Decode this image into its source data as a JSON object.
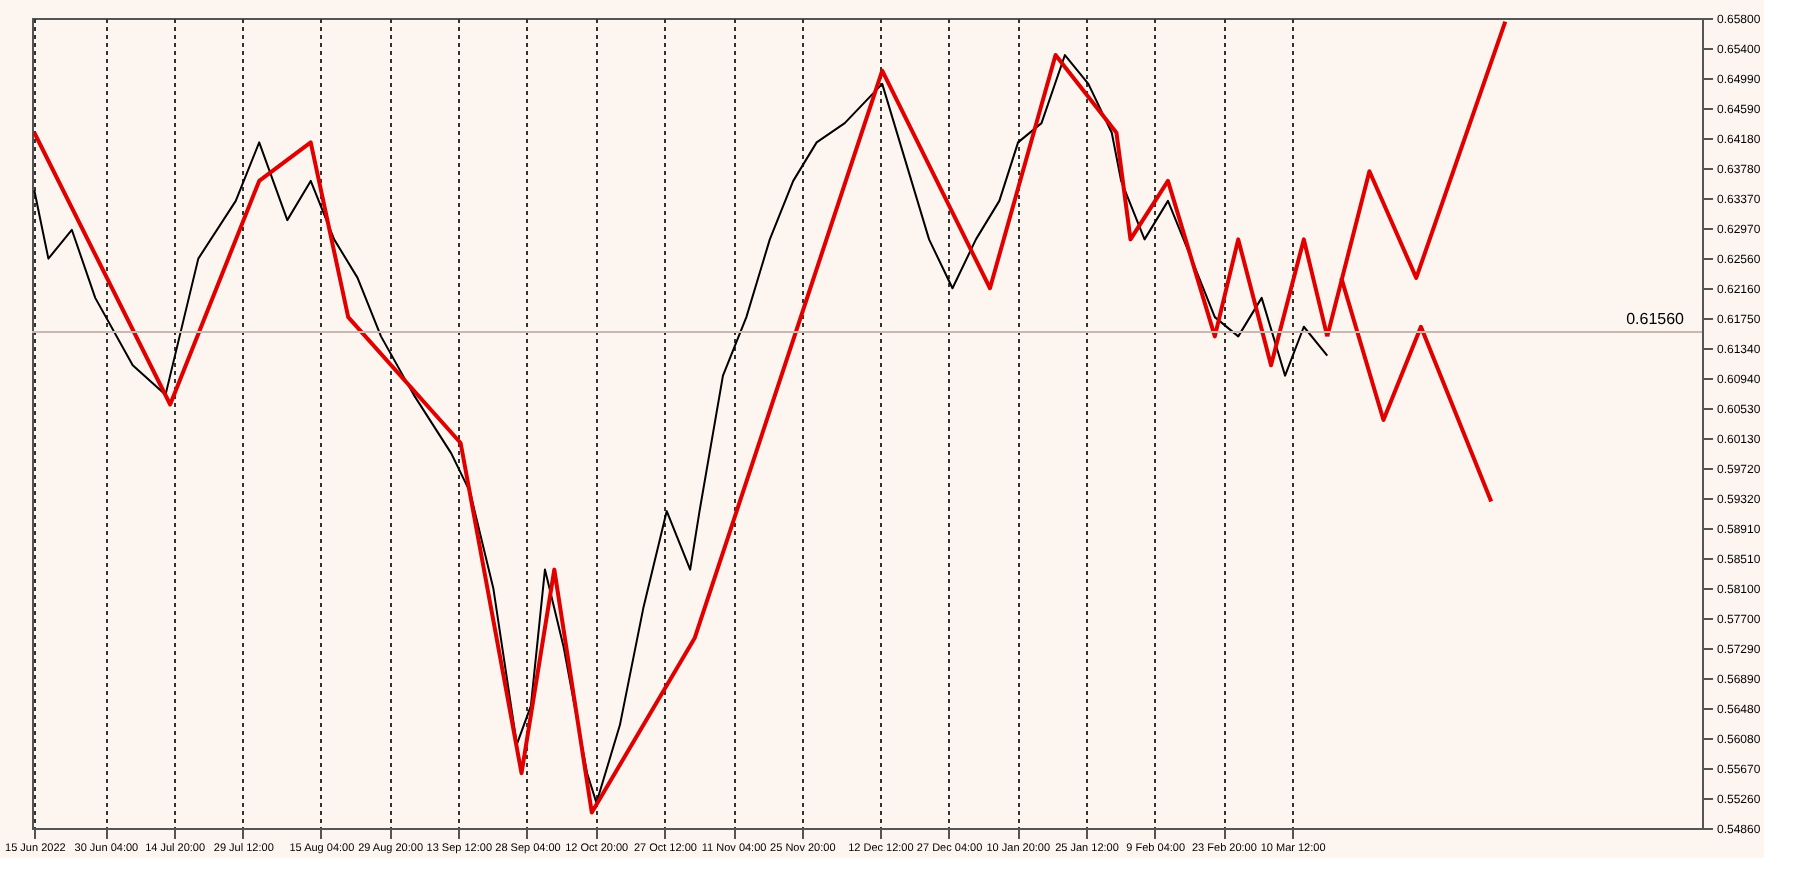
{
  "chart_data": {
    "type": "line",
    "xlim": [
      "2022-06-14T12:00",
      "2023-06-06"
    ],
    "xticks": [
      {
        "value": "2022-06-15",
        "label": "15 Jun 2022"
      },
      {
        "value": "2022-06-30T04:00",
        "label": "30 Jun 04:00"
      },
      {
        "value": "2022-07-14T20:00",
        "label": "14 Jul 20:00"
      },
      {
        "value": "2022-07-29T12:00",
        "label": "29 Jul 12:00"
      },
      {
        "value": "2022-08-15T04:00",
        "label": "15 Aug 04:00"
      },
      {
        "value": "2022-08-29T20:00",
        "label": "29 Aug 20:00"
      },
      {
        "value": "2022-09-13T12:00",
        "label": "13 Sep 12:00"
      },
      {
        "value": "2022-09-28T04:00",
        "label": "28 Sep 04:00"
      },
      {
        "value": "2022-10-12T20:00",
        "label": "12 Oct 20:00"
      },
      {
        "value": "2022-10-27T12:00",
        "label": "27 Oct 12:00"
      },
      {
        "value": "2022-11-11T04:00",
        "label": "11 Nov 04:00"
      },
      {
        "value": "2022-11-25T20:00",
        "label": "25 Nov 20:00"
      },
      {
        "value": "2022-12-12T12:00",
        "label": "12 Dec 12:00"
      },
      {
        "value": "2022-12-27T04:00",
        "label": "27 Dec 04:00"
      },
      {
        "value": "2023-01-10T20:00",
        "label": "10 Jan 20:00"
      },
      {
        "value": "2023-01-25T12:00",
        "label": "25 Jan 12:00"
      },
      {
        "value": "2023-02-09T04:00",
        "label": "9 Feb 04:00"
      },
      {
        "value": "2023-02-23T20:00",
        "label": "23 Feb 20:00"
      },
      {
        "value": "2023-03-10T12:00",
        "label": "10 Mar 12:00"
      }
    ],
    "ylim": [
      0.5486,
      0.658
    ],
    "yticks": [
      {
        "value": 0.658,
        "label": "0.65800"
      },
      {
        "value": 0.654,
        "label": "0.65400"
      },
      {
        "value": 0.6499,
        "label": "0.64990"
      },
      {
        "value": 0.6459,
        "label": "0.64590"
      },
      {
        "value": 0.6418,
        "label": "0.64180"
      },
      {
        "value": 0.6378,
        "label": "0.63780"
      },
      {
        "value": 0.6337,
        "label": "0.63370"
      },
      {
        "value": 0.6297,
        "label": "0.62970"
      },
      {
        "value": 0.6256,
        "label": "0.62560"
      },
      {
        "value": 0.6216,
        "label": "0.62160"
      },
      {
        "value": 0.6175,
        "label": "0.61750"
      },
      {
        "value": 0.6134,
        "label": "0.61340"
      },
      {
        "value": 0.6094,
        "label": "0.60940"
      },
      {
        "value": 0.6053,
        "label": "0.60530"
      },
      {
        "value": 0.6013,
        "label": "0.60130"
      },
      {
        "value": 0.5972,
        "label": "0.59720"
      },
      {
        "value": 0.5932,
        "label": "0.59320"
      },
      {
        "value": 0.5891,
        "label": "0.58910"
      },
      {
        "value": 0.5851,
        "label": "0.58510"
      },
      {
        "value": 0.581,
        "label": "0.58100"
      },
      {
        "value": 0.577,
        "label": "0.57700"
      },
      {
        "value": 0.5729,
        "label": "0.57290"
      },
      {
        "value": 0.5689,
        "label": "0.56890"
      },
      {
        "value": 0.5648,
        "label": "0.56480"
      },
      {
        "value": 0.5608,
        "label": "0.56080"
      },
      {
        "value": 0.5567,
        "label": "0.55670"
      },
      {
        "value": 0.5526,
        "label": "0.55260"
      },
      {
        "value": 0.5486,
        "label": "0.54860"
      }
    ],
    "grid": "x",
    "line_style": "solid",
    "marker": "none",
    "series": [
      {
        "color": "#000000",
        "x": [
          "2022-06-15",
          "2022-06-18",
          "2022-06-23",
          "2022-06-28",
          "2022-07-06",
          "2022-07-13",
          "2022-07-20",
          "2022-07-28",
          "2022-08-02",
          "2022-08-08",
          "2022-08-13",
          "2022-08-18",
          "2022-08-23",
          "2022-08-28",
          "2022-09-04",
          "2022-09-12",
          "2022-09-16",
          "2022-09-21",
          "2022-09-26",
          "2022-09-29",
          "2022-10-02",
          "2022-10-06",
          "2022-10-11",
          "2022-10-13",
          "2022-10-18",
          "2022-10-23",
          "2022-10-28",
          "2022-11-02",
          "2022-11-04",
          "2022-11-09",
          "2022-11-14",
          "2022-11-19",
          "2022-11-24",
          "2022-11-29",
          "2022-12-05",
          "2022-12-13",
          "2022-12-18",
          "2022-12-23",
          "2022-12-28",
          "2023-01-02",
          "2023-01-07",
          "2023-01-11",
          "2023-01-16",
          "2023-01-21",
          "2023-01-26",
          "2023-01-31",
          "2023-02-02",
          "2023-02-07",
          "2023-02-12",
          "2023-02-17",
          "2023-02-22",
          "2023-02-27",
          "2023-03-04",
          "2023-03-09",
          "2023-03-13",
          "2023-03-18"
        ],
        "values": [
          0.6347,
          0.6255,
          0.6294,
          0.6202,
          0.6111,
          0.6071,
          0.6255,
          0.6333,
          0.6412,
          0.6307,
          0.636,
          0.6281,
          0.6229,
          0.615,
          0.6071,
          0.5992,
          0.594,
          0.5809,
          0.5599,
          0.5651,
          0.5835,
          0.573,
          0.556,
          0.552,
          0.5625,
          0.5783,
          0.5914,
          0.5835,
          0.5914,
          0.6097,
          0.6176,
          0.6281,
          0.636,
          0.6412,
          0.6438,
          0.6491,
          0.6386,
          0.6281,
          0.6215,
          0.6281,
          0.6333,
          0.6412,
          0.6438,
          0.653,
          0.6491,
          0.6425,
          0.636,
          0.6281,
          0.6333,
          0.6255,
          0.6176,
          0.615,
          0.6202,
          0.6097,
          0.6163,
          0.6124
        ]
      },
      {
        "color": "#e00000",
        "x": [
          "2022-06-15",
          "2022-07-14",
          "2022-08-02",
          "2022-08-13",
          "2022-08-21",
          "2022-09-14",
          "2022-09-27",
          "2022-10-04",
          "2022-10-12",
          "2022-11-03",
          "2022-12-13",
          "2023-01-05",
          "2023-01-19",
          "2023-02-01",
          "2023-02-04",
          "2023-02-12",
          "2023-02-22",
          "2023-02-27",
          "2023-03-06",
          "2023-03-13",
          "2023-03-18"
        ],
        "values": [
          0.6425,
          0.6058,
          0.636,
          0.6412,
          0.6176,
          0.6006,
          0.556,
          0.5835,
          0.5507,
          0.5743,
          0.6509,
          0.6215,
          0.653,
          0.6425,
          0.6281,
          0.636,
          0.615,
          0.6281,
          0.6111,
          0.6281,
          0.615
        ]
      },
      {
        "color": "#e00000",
        "x": [
          "2023-03-18",
          "2023-03-27",
          "2023-04-06",
          "2023-04-25"
        ],
        "values": [
          0.615,
          0.6373,
          0.6229,
          0.6575
        ]
      },
      {
        "color": "#e00000",
        "x": [
          "2023-03-21",
          "2023-03-30",
          "2023-04-07",
          "2023-04-22"
        ],
        "values": [
          0.6229,
          0.6037,
          0.6163,
          0.5927
        ]
      }
    ],
    "ref_lines": [
      {
        "axis": "y",
        "value": 0.6156,
        "label": "0.61560",
        "color": "#c8b8b0"
      }
    ]
  }
}
